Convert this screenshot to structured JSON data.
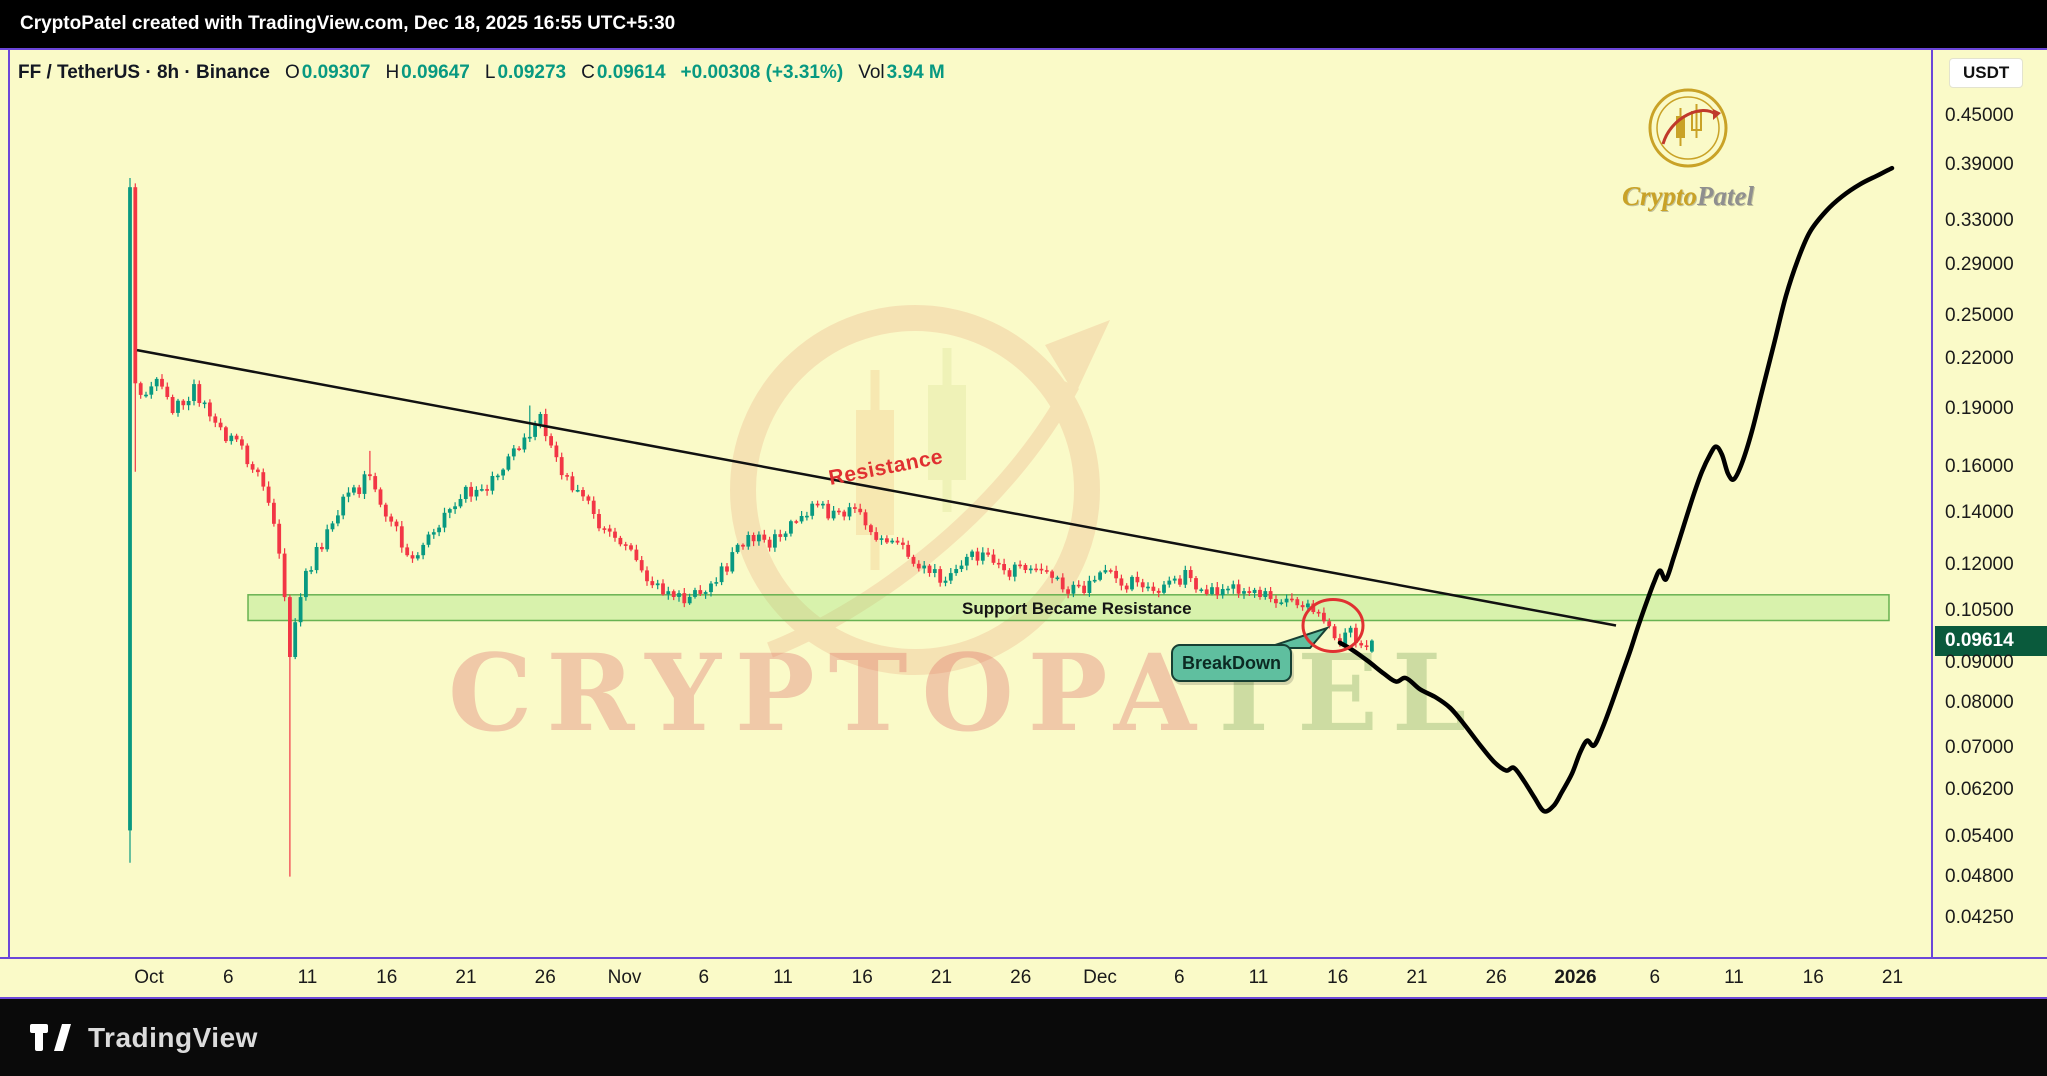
{
  "top_bar": {
    "text": "CryptoPatel created with TradingView.com, Dec 18, 2025 16:55 UTC+5:30"
  },
  "legend": {
    "symbol": "FF / TetherUS · 8h · Binance",
    "o_label": "O",
    "o_value": "0.09307",
    "h_label": "H",
    "h_value": "0.09647",
    "l_label": "L",
    "l_value": "0.09273",
    "c_label": "C",
    "c_value": "0.09614",
    "change": "+0.00308 (+3.31%)",
    "vol_label": "Vol",
    "vol_value": "3.94 M"
  },
  "price_axis": {
    "currency_button": "USDT",
    "last_price": "0.09614"
  },
  "annotations": {
    "resistance": "Resistance",
    "support": "Support Became Resistance",
    "breakdown": "BreakDown"
  },
  "watermark": {
    "text": "CRYPTOPATEL",
    "part1": "CRYPTOPA",
    "part2": "TEL",
    "brand_first": "Crypto",
    "brand_second": "Patel"
  },
  "footer": {
    "brand": "TradingView"
  },
  "colors": {
    "background": "#fafac8",
    "panel_border": "#6b46d9",
    "candle_up": "#089981",
    "candle_down": "#f23645",
    "trendline": "#111111",
    "projection": "#000000",
    "band_fill": "rgba(140,225,110,0.30)",
    "band_border": "rgba(90,170,70,0.9)",
    "resistance_text": "#e03131",
    "breakdown_fill": "#5fbf9f",
    "breakdown_border": "#173f33",
    "badge_bg": "#0a5a3c",
    "value_green": "#089981",
    "gold": "#c9a227"
  },
  "chart_data": {
    "type": "candlestick",
    "symbol": "FF / TetherUS",
    "exchange": "Binance",
    "interval": "8h",
    "scale": "logarithmic",
    "current_ohlc": {
      "open": 0.09307,
      "high": 0.09647,
      "low": 0.09273,
      "close": 0.09614,
      "change": 0.00308,
      "change_pct": 3.31,
      "volume": "3.94M"
    },
    "axis_anchors": {
      "price_a": 0.45,
      "y_a": 66,
      "price_b": 0.0425,
      "y_b": 868
    },
    "y_ticks": [
      {
        "label": "0.45000",
        "value": 0.45
      },
      {
        "label": "0.39000",
        "value": 0.39
      },
      {
        "label": "0.33000",
        "value": 0.33
      },
      {
        "label": "0.29000",
        "value": 0.29
      },
      {
        "label": "0.25000",
        "value": 0.25
      },
      {
        "label": "0.22000",
        "value": 0.22
      },
      {
        "label": "0.19000",
        "value": 0.19
      },
      {
        "label": "0.16000",
        "value": 0.16
      },
      {
        "label": "0.14000",
        "value": 0.14
      },
      {
        "label": "0.12000",
        "value": 0.12
      },
      {
        "label": "0.10500",
        "value": 0.105
      },
      {
        "label": "0.09000",
        "value": 0.09
      },
      {
        "label": "0.08000",
        "value": 0.08
      },
      {
        "label": "0.07000",
        "value": 0.07
      },
      {
        "label": "0.06200",
        "value": 0.062
      },
      {
        "label": "0.05400",
        "value": 0.054
      },
      {
        "label": "0.04800",
        "value": 0.048
      },
      {
        "label": "0.04250",
        "value": 0.0425
      }
    ],
    "x_ticks": [
      {
        "label": "Oct"
      },
      {
        "label": "6"
      },
      {
        "label": "11"
      },
      {
        "label": "16"
      },
      {
        "label": "21"
      },
      {
        "label": "26"
      },
      {
        "label": "Nov"
      },
      {
        "label": "6"
      },
      {
        "label": "11"
      },
      {
        "label": "16"
      },
      {
        "label": "21"
      },
      {
        "label": "26"
      },
      {
        "label": "Dec"
      },
      {
        "label": "6"
      },
      {
        "label": "11"
      },
      {
        "label": "16"
      },
      {
        "label": "21"
      },
      {
        "label": "26"
      },
      {
        "label": "2026",
        "emphasis": true
      },
      {
        "label": "6"
      },
      {
        "label": "11"
      },
      {
        "label": "16"
      },
      {
        "label": "21"
      }
    ],
    "candles": {
      "count": 234,
      "waypoints": [
        [
          0,
          0.365
        ],
        [
          1,
          0.21
        ],
        [
          2,
          0.195
        ],
        [
          5,
          0.205
        ],
        [
          8,
          0.188
        ],
        [
          12,
          0.2
        ],
        [
          15,
          0.186
        ],
        [
          18,
          0.176
        ],
        [
          21,
          0.168
        ],
        [
          24,
          0.156
        ],
        [
          27,
          0.136
        ],
        [
          29,
          0.108
        ],
        [
          30,
          0.092
        ],
        [
          31,
          0.101
        ],
        [
          33,
          0.116
        ],
        [
          36,
          0.128
        ],
        [
          39,
          0.142
        ],
        [
          42,
          0.148
        ],
        [
          45,
          0.157
        ],
        [
          48,
          0.139
        ],
        [
          51,
          0.128
        ],
        [
          54,
          0.122
        ],
        [
          57,
          0.133
        ],
        [
          60,
          0.142
        ],
        [
          63,
          0.15
        ],
        [
          66,
          0.147
        ],
        [
          69,
          0.158
        ],
        [
          72,
          0.166
        ],
        [
          75,
          0.179
        ],
        [
          77,
          0.184
        ],
        [
          79,
          0.168
        ],
        [
          81,
          0.156
        ],
        [
          84,
          0.148
        ],
        [
          87,
          0.139
        ],
        [
          90,
          0.132
        ],
        [
          93,
          0.127
        ],
        [
          96,
          0.118
        ],
        [
          99,
          0.113
        ],
        [
          102,
          0.11
        ],
        [
          105,
          0.108
        ],
        [
          108,
          0.112
        ],
        [
          111,
          0.118
        ],
        [
          114,
          0.125
        ],
        [
          117,
          0.13
        ],
        [
          120,
          0.128
        ],
        [
          123,
          0.133
        ],
        [
          126,
          0.138
        ],
        [
          129,
          0.142
        ],
        [
          132,
          0.138
        ],
        [
          135,
          0.143
        ],
        [
          138,
          0.136
        ],
        [
          141,
          0.13
        ],
        [
          144,
          0.126
        ],
        [
          147,
          0.122
        ],
        [
          150,
          0.118
        ],
        [
          153,
          0.115
        ],
        [
          156,
          0.12
        ],
        [
          159,
          0.124
        ],
        [
          162,
          0.12
        ],
        [
          165,
          0.118
        ],
        [
          168,
          0.121
        ],
        [
          171,
          0.117
        ],
        [
          174,
          0.114
        ],
        [
          177,
          0.111
        ],
        [
          180,
          0.114
        ],
        [
          183,
          0.117
        ],
        [
          186,
          0.113
        ],
        [
          189,
          0.115
        ],
        [
          192,
          0.111
        ],
        [
          195,
          0.113
        ],
        [
          198,
          0.117
        ],
        [
          201,
          0.112
        ],
        [
          204,
          0.11
        ],
        [
          207,
          0.112
        ],
        [
          210,
          0.109
        ],
        [
          213,
          0.11
        ],
        [
          216,
          0.108
        ],
        [
          219,
          0.109
        ],
        [
          222,
          0.106
        ],
        [
          225,
          0.1
        ],
        [
          227,
          0.095
        ],
        [
          229,
          0.098
        ],
        [
          231,
          0.0935
        ],
        [
          233,
          0.09614
        ]
      ],
      "overrides": {
        "0": {
          "o": 0.055,
          "h": 0.375,
          "l": 0.05,
          "c": 0.365
        },
        "1": {
          "o": 0.365,
          "h": 0.369,
          "l": 0.158,
          "c": 0.205
        },
        "30": {
          "l": 0.048
        },
        "45": {
          "h": 0.168
        },
        "75": {
          "h": 0.192
        },
        "233": {
          "o": 0.09307,
          "h": 0.09647,
          "l": 0.09273,
          "c": 0.09614
        }
      }
    },
    "trendline": {
      "label": "Resistance",
      "start_price": 0.226,
      "end_price": 0.1005
    },
    "support_band": {
      "label": "Support Became Resistance",
      "price_top": 0.11,
      "price_bottom": 0.102
    },
    "breakdown": {
      "label": "BreakDown",
      "price": 0.1005
    },
    "projection": {
      "points_price": [
        [
          1340,
          0.0955
        ],
        [
          1352,
          0.0936
        ],
        [
          1368,
          0.0905
        ],
        [
          1384,
          0.0872
        ],
        [
          1396,
          0.0852
        ],
        [
          1406,
          0.0861
        ],
        [
          1420,
          0.0833
        ],
        [
          1436,
          0.0813
        ],
        [
          1450,
          0.0789
        ],
        [
          1464,
          0.0752
        ],
        [
          1480,
          0.0707
        ],
        [
          1494,
          0.0673
        ],
        [
          1506,
          0.0656
        ],
        [
          1514,
          0.0661
        ],
        [
          1524,
          0.0636
        ],
        [
          1534,
          0.0607
        ],
        [
          1544,
          0.0582
        ],
        [
          1554,
          0.0592
        ],
        [
          1562,
          0.0616
        ],
        [
          1572,
          0.065
        ],
        [
          1580,
          0.0691
        ],
        [
          1587,
          0.0716
        ],
        [
          1594,
          0.0706
        ],
        [
          1602,
          0.0741
        ],
        [
          1612,
          0.0801
        ],
        [
          1622,
          0.0871
        ],
        [
          1630,
          0.0931
        ],
        [
          1638,
          0.1001
        ],
        [
          1646,
          0.1071
        ],
        [
          1654,
          0.1141
        ],
        [
          1660,
          0.1181
        ],
        [
          1666,
          0.1151
        ],
        [
          1674,
          0.1231
        ],
        [
          1684,
          0.1351
        ],
        [
          1694,
          0.1481
        ],
        [
          1702,
          0.1581
        ],
        [
          1710,
          0.1661
        ],
        [
          1716,
          0.1701
        ],
        [
          1722,
          0.1661
        ],
        [
          1728,
          0.1571
        ],
        [
          1734,
          0.1546
        ],
        [
          1742,
          0.1621
        ],
        [
          1752,
          0.1781
        ],
        [
          1762,
          0.2001
        ],
        [
          1774,
          0.2301
        ],
        [
          1786,
          0.2651
        ],
        [
          1798,
          0.2951
        ],
        [
          1810,
          0.3201
        ],
        [
          1826,
          0.3401
        ],
        [
          1842,
          0.3551
        ],
        [
          1860,
          0.3681
        ],
        [
          1878,
          0.3781
        ],
        [
          1892,
          0.3861
        ]
      ]
    }
  }
}
